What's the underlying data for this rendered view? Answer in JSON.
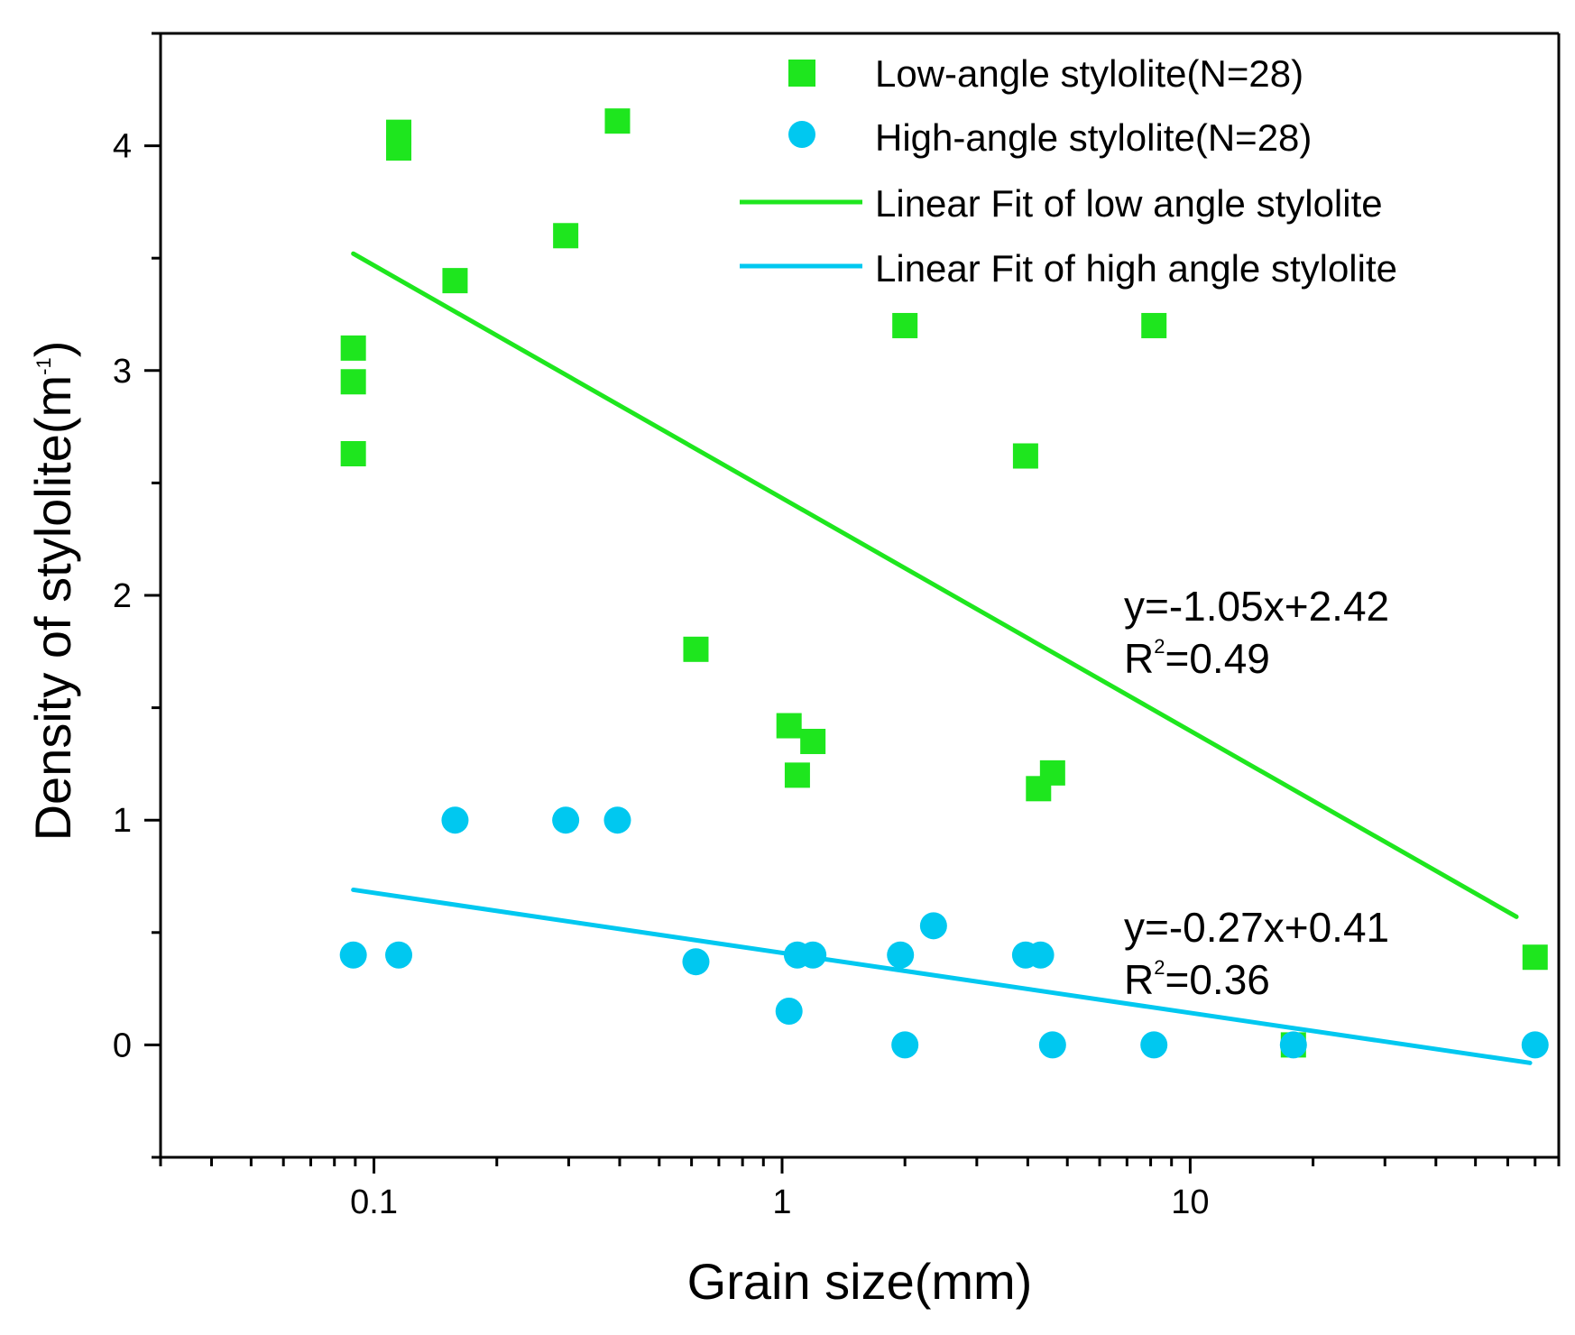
{
  "chart_data": {
    "type": "scatter",
    "title": "",
    "xlabel": "Grain size(mm)",
    "ylabel": {
      "main": "Density of stylolite(m",
      "sup": "-1",
      "close": ")"
    },
    "xscale": "log",
    "xlim": [
      0.03,
      80
    ],
    "ylim": [
      -0.5,
      4.5
    ],
    "xticks": [
      {
        "value": 0.1,
        "label": "0.1"
      },
      {
        "value": 1,
        "label": "1"
      },
      {
        "value": 10,
        "label": "10"
      }
    ],
    "yticks": [
      {
        "value": 0,
        "label": "0"
      },
      {
        "value": 1,
        "label": "1"
      },
      {
        "value": 2,
        "label": "2"
      },
      {
        "value": 3,
        "label": "3"
      },
      {
        "value": 4,
        "label": "4"
      }
    ],
    "legend_position": "top-right",
    "series": [
      {
        "name": "Low-angle stylolite(N=28)",
        "kind": "scatter",
        "marker": "square",
        "color": "#1ee61e",
        "points": [
          [
            0.089,
            3.1
          ],
          [
            0.089,
            2.95
          ],
          [
            0.089,
            2.63
          ],
          [
            0.115,
            4.06
          ],
          [
            0.115,
            3.99
          ],
          [
            0.158,
            3.4
          ],
          [
            0.295,
            3.6
          ],
          [
            0.395,
            4.11
          ],
          [
            0.615,
            1.76
          ],
          [
            1.04,
            1.42
          ],
          [
            1.09,
            1.2
          ],
          [
            1.19,
            1.35
          ],
          [
            2.0,
            3.2
          ],
          [
            3.95,
            2.62
          ],
          [
            4.25,
            1.14
          ],
          [
            4.6,
            1.21
          ],
          [
            8.15,
            3.2
          ],
          [
            17.9,
            0.0
          ],
          [
            70,
            0.39
          ]
        ]
      },
      {
        "name": "High-angle stylolite(N=28)",
        "kind": "scatter",
        "marker": "circle",
        "color": "#00c8f0",
        "points": [
          [
            0.089,
            0.4
          ],
          [
            0.115,
            0.4
          ],
          [
            0.158,
            1.0
          ],
          [
            0.295,
            1.0
          ],
          [
            0.395,
            1.0
          ],
          [
            0.615,
            0.37
          ],
          [
            1.04,
            0.15
          ],
          [
            1.09,
            0.4
          ],
          [
            1.19,
            0.4
          ],
          [
            1.95,
            0.4
          ],
          [
            2.0,
            0.0
          ],
          [
            2.35,
            0.53
          ],
          [
            3.95,
            0.4
          ],
          [
            4.3,
            0.4
          ],
          [
            4.6,
            0.0
          ],
          [
            8.15,
            0.0
          ],
          [
            17.9,
            0.0
          ],
          [
            70,
            0.0
          ]
        ]
      },
      {
        "name": "Linear Fit of low angle stylolite",
        "kind": "line",
        "color": "#1ee61e",
        "points": [
          [
            0.089,
            3.52
          ],
          [
            63,
            0.57
          ]
        ]
      },
      {
        "name": "Linear Fit of high angle stylolite",
        "kind": "line",
        "color": "#00c8f0",
        "points": [
          [
            0.089,
            0.69
          ],
          [
            68,
            -0.08
          ]
        ]
      }
    ],
    "annotations": [
      {
        "id": "low",
        "equation": "y=-1.05x+2.42",
        "r2_prefix": "R",
        "r2_sup": "2",
        "r2_value": "=0.49"
      },
      {
        "id": "high",
        "equation": "y=-0.27x+0.41",
        "r2_prefix": "R",
        "r2_sup": "2",
        "r2_value": "=0.36"
      }
    ]
  }
}
